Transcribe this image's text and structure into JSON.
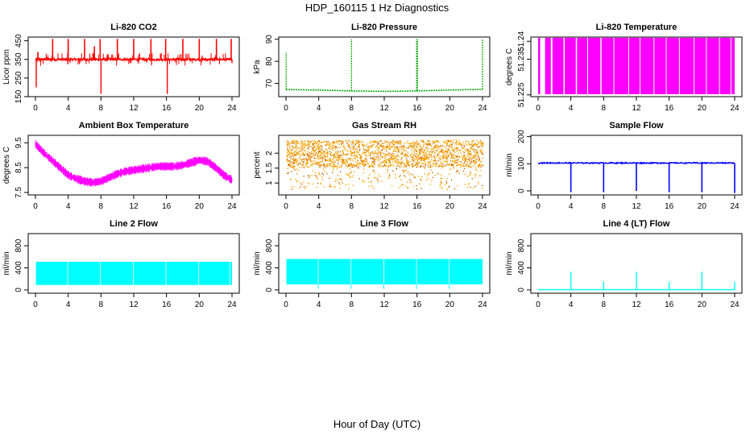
{
  "figure": {
    "title": "HDP_160115  1 Hz Diagnostics",
    "xlabel": "Hour of Day (UTC)"
  },
  "chart_data": [
    {
      "id": "co2",
      "type": "line",
      "title": "Li-820 CO2",
      "ylabel": "Licor ppm",
      "color": "#ff0000",
      "xlim": [
        0,
        24
      ],
      "xticks": [
        0,
        4,
        8,
        12,
        16,
        20,
        24
      ],
      "ylim": [
        150,
        470
      ],
      "yticks": [
        150,
        250,
        350,
        450
      ],
      "baseline": 350,
      "noise": 12,
      "spikes_up": [
        [
          0.3,
          390
        ],
        [
          2.1,
          460
        ],
        [
          4.0,
          460
        ],
        [
          6.0,
          460
        ],
        [
          7.2,
          420
        ],
        [
          7.9,
          460
        ],
        [
          10.0,
          460
        ],
        [
          12.0,
          460
        ],
        [
          14.1,
          460
        ],
        [
          15.9,
          460
        ],
        [
          18.0,
          460
        ],
        [
          20.0,
          460
        ],
        [
          22.1,
          460
        ],
        [
          23.9,
          460
        ]
      ],
      "spikes_down": [
        [
          0.1,
          200
        ],
        [
          8.0,
          165
        ],
        [
          16.1,
          165
        ],
        [
          24.0,
          330
        ]
      ]
    },
    {
      "id": "pressure",
      "type": "line",
      "title": "Li-820 Pressure",
      "ylabel": "kPa",
      "color": "#00aa00",
      "xlim": [
        0,
        24
      ],
      "xticks": [
        0,
        4,
        8,
        12,
        16,
        20,
        24
      ],
      "ylim": [
        64,
        91
      ],
      "yticks": [
        70,
        80,
        90
      ],
      "series_points": [
        [
          0,
          67.2
        ],
        [
          4,
          67.0
        ],
        [
          8,
          66.6
        ],
        [
          12,
          66.4
        ],
        [
          16,
          66.6
        ],
        [
          20,
          67.0
        ],
        [
          24,
          67.3
        ]
      ],
      "spikes": [
        [
          0.02,
          84
        ],
        [
          8.0,
          90
        ],
        [
          15.95,
          90
        ],
        [
          16.05,
          90
        ],
        [
          24.0,
          90
        ]
      ]
    },
    {
      "id": "li820temp",
      "type": "line",
      "title": "Li-820 Temperature",
      "ylabel": "degrees C",
      "color": "#ff00ff",
      "xlim": [
        0,
        24
      ],
      "xticks": [
        0,
        4,
        8,
        12,
        16,
        20,
        24
      ],
      "ylim": [
        51.2245,
        51.2412
      ],
      "yticks": [
        51.225,
        51.235,
        51.24
      ],
      "low": 51.2252,
      "high": 51.241,
      "gaps": [
        [
          0.25,
          0.85
        ],
        [
          1.55,
          1.75
        ],
        [
          3.1,
          3.25
        ],
        [
          4.6,
          4.75
        ],
        [
          6.0,
          6.1
        ],
        [
          7.6,
          7.75
        ],
        [
          9.2,
          9.3
        ],
        [
          11.0,
          11.1
        ],
        [
          12.4,
          12.5
        ],
        [
          14.1,
          14.2
        ],
        [
          15.6,
          15.7
        ],
        [
          17.2,
          17.3
        ],
        [
          19.0,
          19.1
        ],
        [
          20.5,
          20.6
        ],
        [
          22.1,
          22.2
        ],
        [
          23.5,
          23.6
        ]
      ]
    },
    {
      "id": "ambtemp",
      "type": "line",
      "title": "Ambient Box Temperature",
      "ylabel": "degrees C",
      "color": "#ff00ff",
      "xlim": [
        0,
        24
      ],
      "xticks": [
        0,
        4,
        8,
        12,
        16,
        20,
        24
      ],
      "ylim": [
        7.4,
        9.8
      ],
      "yticks": [
        7.5,
        8.5,
        9.5
      ],
      "series_points": [
        [
          0,
          9.45
        ],
        [
          1,
          9.1
        ],
        [
          2,
          8.8
        ],
        [
          3,
          8.5
        ],
        [
          4,
          8.2
        ],
        [
          5,
          8.05
        ],
        [
          6,
          7.95
        ],
        [
          7,
          7.9
        ],
        [
          8,
          7.95
        ],
        [
          9,
          8.1
        ],
        [
          10,
          8.25
        ],
        [
          11,
          8.35
        ],
        [
          12,
          8.4
        ],
        [
          13,
          8.45
        ],
        [
          14,
          8.5
        ],
        [
          15,
          8.55
        ],
        [
          16,
          8.55
        ],
        [
          17,
          8.55
        ],
        [
          18,
          8.6
        ],
        [
          19,
          8.7
        ],
        [
          20,
          8.8
        ],
        [
          21,
          8.75
        ],
        [
          22,
          8.5
        ],
        [
          23,
          8.2
        ],
        [
          24,
          8.0
        ]
      ],
      "band": 0.3
    },
    {
      "id": "rh",
      "type": "scatter",
      "title": "Gas Stream RH",
      "ylabel": "percent",
      "color": "#ffa500",
      "xlim": [
        0,
        24
      ],
      "xticks": [
        0,
        4,
        8,
        12,
        16,
        20,
        24
      ],
      "ylim": [
        0.6,
        2.6
      ],
      "yticks": [
        1.0,
        1.5,
        2.0
      ],
      "band_low": 1.55,
      "band_high": 2.45,
      "dip_min": 0.8
    },
    {
      "id": "sampleflow",
      "type": "line",
      "title": "Sample Flow",
      "ylabel": "ml/min",
      "color": "#0000ff",
      "xlim": [
        0,
        24
      ],
      "xticks": [
        0,
        4,
        8,
        12,
        16,
        20,
        24
      ],
      "ylim": [
        -15,
        205
      ],
      "yticks": [
        0,
        100,
        200
      ],
      "baseline": 103,
      "dips": [
        [
          4.0,
          -5
        ],
        [
          8.0,
          -5
        ],
        [
          12.0,
          0
        ],
        [
          16.0,
          -5
        ],
        [
          20.0,
          -5
        ],
        [
          24.0,
          -8
        ]
      ]
    },
    {
      "id": "line2",
      "type": "line",
      "title": "Line 2 Flow",
      "ylabel": "ml/min",
      "color": "#00ffff",
      "xlim": [
        0,
        24
      ],
      "xticks": [
        0,
        4,
        8,
        12,
        16,
        20,
        24
      ],
      "ylim": [
        -60,
        1020
      ],
      "yticks": [
        0,
        400,
        800
      ],
      "low": 90,
      "high": 510,
      "gaps": [
        3.9,
        7.9,
        11.9,
        15.9,
        19.9,
        23.7
      ]
    },
    {
      "id": "line3",
      "type": "line",
      "title": "Line 3 Flow",
      "ylabel": "ml/min",
      "color": "#00ffff",
      "xlim": [
        0,
        24
      ],
      "xticks": [
        0,
        4,
        8,
        12,
        16,
        20,
        24
      ],
      "ylim": [
        -60,
        1020
      ],
      "yticks": [
        0,
        400,
        800
      ],
      "low": 100,
      "high": 560,
      "gaps": [
        3.9,
        7.9,
        11.9,
        15.9,
        19.9
      ],
      "dips_to": 20
    },
    {
      "id": "line4",
      "type": "line",
      "title": "Line 4 (LT) Flow",
      "ylabel": "ml/min",
      "color": "#00ffff",
      "xlim": [
        0,
        24
      ],
      "xticks": [
        0,
        4,
        8,
        12,
        16,
        20,
        24
      ],
      "ylim": [
        -60,
        1020
      ],
      "yticks": [
        0,
        400,
        800
      ],
      "baseline": 5,
      "spikes": [
        [
          4.0,
          330
        ],
        [
          8.0,
          150
        ],
        [
          12.0,
          330
        ],
        [
          16.0,
          150
        ],
        [
          20.0,
          330
        ],
        [
          24.0,
          150
        ]
      ]
    }
  ]
}
